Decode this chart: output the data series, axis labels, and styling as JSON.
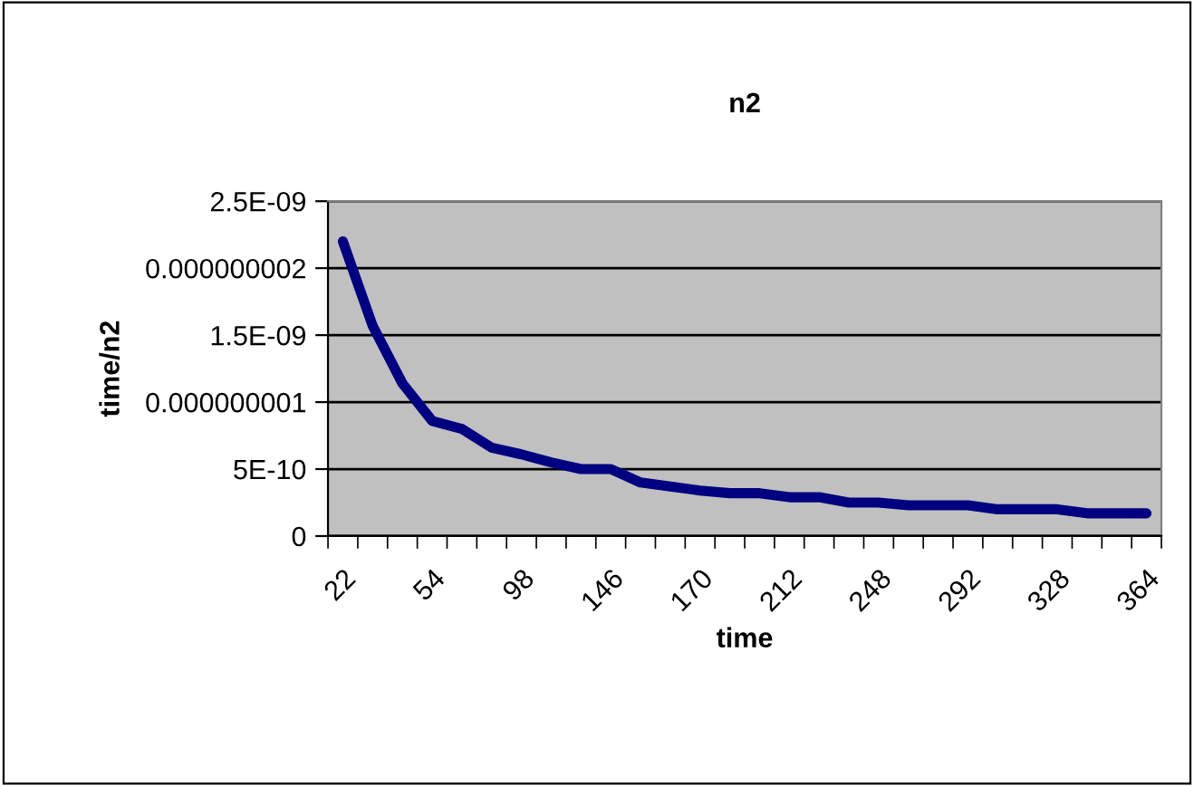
{
  "chart_data": {
    "type": "line",
    "title": "n2",
    "xlabel": "time",
    "ylabel": "time/n2",
    "categories": [
      "22",
      null,
      null,
      "54",
      null,
      null,
      "98",
      null,
      null,
      "146",
      null,
      null,
      "170",
      null,
      null,
      "212",
      null,
      null,
      "248",
      null,
      null,
      "292",
      null,
      null,
      "328",
      null,
      null,
      "364"
    ],
    "series": [
      {
        "color": "#000080",
        "values": [
          2.2e-09,
          1.57e-09,
          1.14e-09,
          8.6e-10,
          8e-10,
          6.6e-10,
          6.1e-10,
          5.5e-10,
          5e-10,
          5e-10,
          4e-10,
          3.7e-10,
          3.4e-10,
          3.2e-10,
          3.2e-10,
          2.9e-10,
          2.9e-10,
          2.5e-10,
          2.5e-10,
          2.3e-10,
          2.3e-10,
          2.3e-10,
          2e-10,
          2e-10,
          2e-10,
          1.7e-10,
          1.7e-10,
          1.7e-10
        ]
      }
    ],
    "ylim": [
      0,
      2.5e-09
    ],
    "yticks": [
      0,
      {
        "value": 5e-10,
        "label": "5E-10"
      },
      {
        "value": 1e-09,
        "label": "0.000000001"
      },
      {
        "value": 1.5e-09,
        "label": "1.5E-09"
      },
      {
        "value": 2e-09,
        "label": "0.000000002"
      },
      {
        "value": 2.5e-09,
        "label": "2.5E-09"
      }
    ],
    "grid": "y",
    "marker": "none",
    "line_style": "solid"
  }
}
